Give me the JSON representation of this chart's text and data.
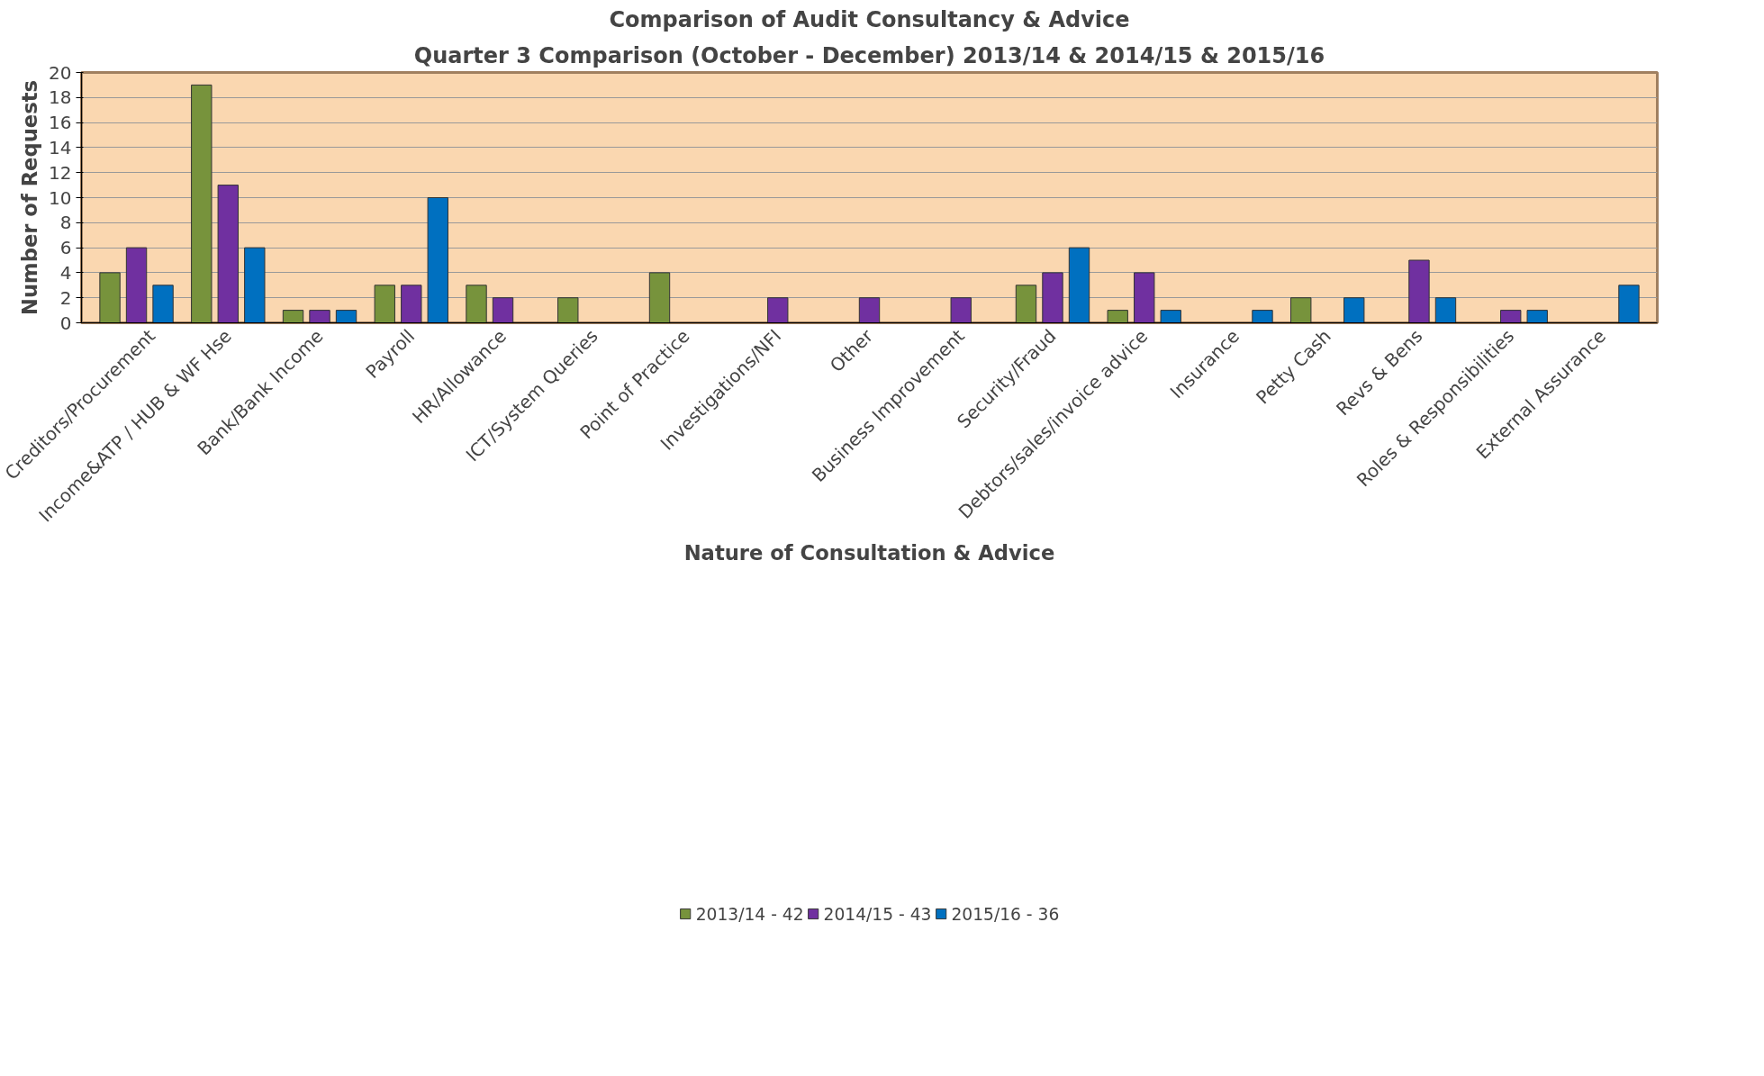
{
  "chart_data": {
    "type": "bar",
    "title": "Comparison of Audit Consultancy & Advice",
    "subtitle": "Quarter 3 Comparison (October - December) 2013/14 & 2014/15 & 2015/16",
    "xlabel": "Nature of Consultation & Advice",
    "ylabel": "Number of Requests",
    "categories": [
      "Creditors/Procurement",
      "Income&ATP / HUB & WF Hse",
      "Bank/Bank Income",
      "Payroll",
      "HR/Allowance",
      "ICT/System Queries",
      "Point of Practice",
      "Investigations/NFI",
      "Other",
      "Business Improvement",
      "Security/Fraud",
      "Debtors/sales/invoice advice",
      "Insurance",
      "Petty Cash",
      "Revs & Bens",
      "Roles & Responsibilities",
      "External Assurance"
    ],
    "series": [
      {
        "name": "2013/14 - 42",
        "color": "#77933c",
        "values": [
          4,
          19,
          1,
          3,
          3,
          2,
          4,
          null,
          null,
          null,
          3,
          1,
          null,
          2,
          null,
          null,
          null
        ]
      },
      {
        "name": "2014/15 - 43",
        "color": "#7030a0",
        "values": [
          6,
          11,
          1,
          3,
          2,
          null,
          null,
          2,
          2,
          2,
          4,
          4,
          null,
          null,
          5,
          1,
          null
        ]
      },
      {
        "name": "2015/16 - 36",
        "color": "#0070c0",
        "values": [
          3,
          6,
          1,
          10,
          null,
          null,
          null,
          null,
          null,
          null,
          6,
          1,
          1,
          2,
          2,
          1,
          3
        ]
      }
    ],
    "ylim": [
      0,
      20
    ],
    "yticks": [
      0,
      2,
      4,
      6,
      8,
      10,
      12,
      14,
      16,
      18,
      20
    ],
    "grid": "y",
    "legend": "bottom"
  }
}
